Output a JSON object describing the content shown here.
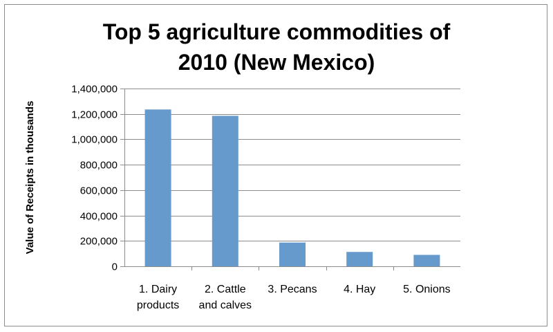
{
  "chart_data": {
    "type": "bar",
    "title_lines": [
      "Top 5 agriculture commodities of",
      "2010 (New Mexico)"
    ],
    "ylabel": "Value of Receipts in thousands",
    "xlabel": "",
    "categories": [
      [
        "1. Dairy",
        "products"
      ],
      [
        "2. Cattle",
        "and calves"
      ],
      [
        "3. Pecans"
      ],
      [
        "4. Hay"
      ],
      [
        "5. Onions"
      ]
    ],
    "values": [
      1235000,
      1185000,
      187000,
      113000,
      90000
    ],
    "ylim": [
      0,
      1400000
    ],
    "yticks": [
      0,
      200000,
      400000,
      600000,
      800000,
      1000000,
      1200000,
      1400000
    ],
    "ytick_labels": [
      "0",
      "200,000",
      "400,000",
      "600,000",
      "800,000",
      "1,000,000",
      "1,200,000",
      "1,400,000"
    ],
    "grid": true,
    "legend": "none",
    "bar_color": "#6699cc",
    "grid_color": "#8c8c8c"
  }
}
